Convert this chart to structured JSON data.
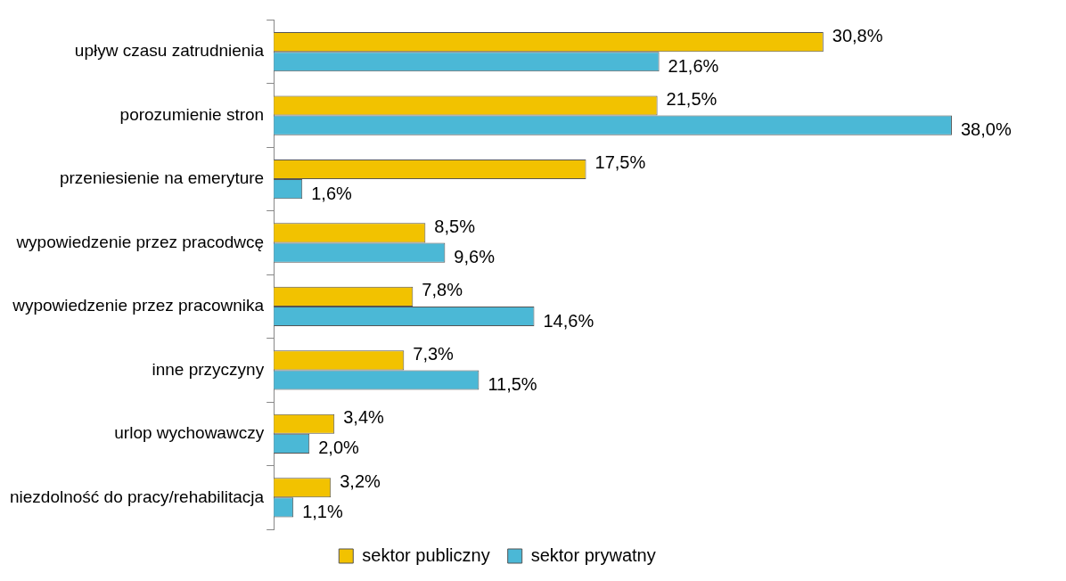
{
  "chart_data": {
    "type": "bar",
    "orientation": "horizontal",
    "categories": [
      "upływ czasu zatrudnienia",
      "porozumienie stron",
      "przeniesienie na emeryture",
      "wypowiedzenie przez pracodwcę",
      "wypowiedzenie przez pracownika",
      "inne przyczyny",
      "urlop wychowawczy",
      "niezdolność do pracy/rehabilitacja"
    ],
    "series": [
      {
        "name": "sektor publiczny",
        "color": "#f2c200",
        "values": [
          30.8,
          21.5,
          17.5,
          8.5,
          7.8,
          7.3,
          3.4,
          3.2
        ],
        "value_labels": [
          "30,8%",
          "21,5%",
          "17,5%",
          "8,5%",
          "7,8%",
          "7,3%",
          "3,4%",
          "3,2%"
        ]
      },
      {
        "name": "sektor prywatny",
        "color": "#4bb8d6",
        "values": [
          21.6,
          38.0,
          1.6,
          9.6,
          14.6,
          11.5,
          2.0,
          1.1
        ],
        "value_labels": [
          "21,6%",
          "38,0%",
          "1,6%",
          "9,6%",
          "14,6%",
          "11,5%",
          "2,0%",
          "1,1%"
        ]
      }
    ],
    "legend": "bottom",
    "grid": false
  }
}
